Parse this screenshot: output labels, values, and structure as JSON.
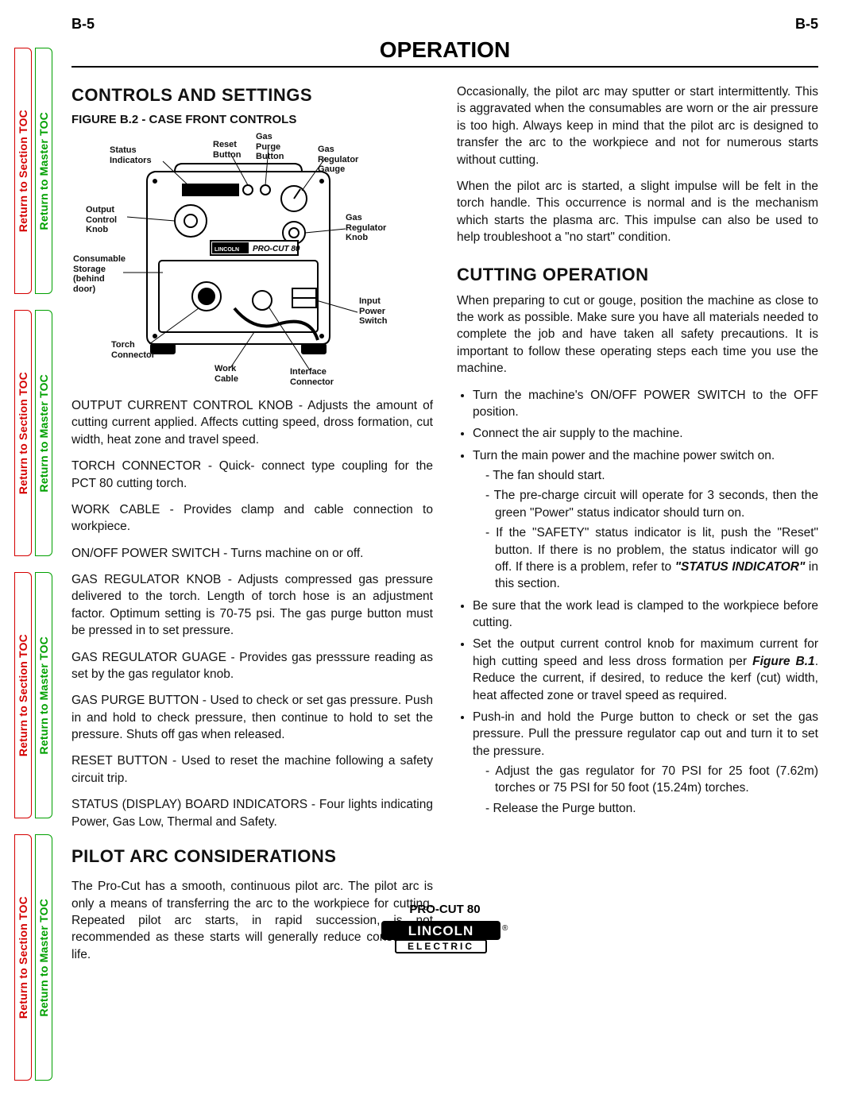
{
  "page_header": {
    "left": "B-5",
    "right": "B-5"
  },
  "title": "OPERATION",
  "side_tabs": {
    "red_label": "Return to Section TOC",
    "green_label": "Return to Master TOC"
  },
  "figure": {
    "caption": "FIGURE B.2 - CASE FRONT CONTROLS",
    "labels": {
      "status_indicators": "Status\nIndicators",
      "reset_button": "Reset\nButton",
      "gas_purge_button": "Gas\nPurge\nButton",
      "gas_regulator_gauge": "Gas\nRegulator\nGauge",
      "output_control_knob": "Output\nControl\nKnob",
      "gas_regulator_knob": "Gas\nRegulator\nKnob",
      "consumable_storage": "Consumable\nStorage\n(behind\ndoor)",
      "torch_connector": "Torch\nConnector",
      "work_cable": "Work\nCable",
      "interface_connector": "Interface\nConnector",
      "input_power_switch": "Input\nPower\nSwitch",
      "product_text": "PRO-CUT 80",
      "brand_text": "LINCOLN"
    },
    "colors": {
      "stroke": "#000000",
      "fill_white": "#ffffff",
      "text": "#000000"
    }
  },
  "left_column": {
    "heading1": "CONTROLS AND SETTINGS",
    "paras": [
      "OUTPUT CURRENT CONTROL KNOB - Adjusts the amount of cutting current applied.  Affects cutting speed, dross formation, cut width, heat zone and travel speed.",
      "TORCH CONNECTOR - Quick- connect type coupling for the PCT 80 cutting torch.",
      "WORK CABLE - Provides clamp and cable connection to workpiece.",
      "ON/OFF POWER SWITCH - Turns machine on or off.",
      "GAS REGULATOR KNOB - Adjusts compressed gas pressure delivered to the torch.  Length of torch hose is an adjustment factor.  Optimum setting is 70-75 psi. The gas purge button must be pressed in to set pressure.",
      "GAS REGULATOR GUAGE - Provides gas presssure reading as set by the gas regulator knob.",
      "GAS PURGE BUTTON - Used to check or set gas pressure.  Push in and hold to check pressure, then continue to hold to set the pressure.  Shuts off gas when released.",
      "RESET BUTTON - Used to reset the machine following a safety circuit trip.",
      "STATUS (DISPLAY) BOARD INDICATORS - Four lights indicating Power, Gas Low, Thermal and Safety."
    ],
    "heading2": "PILOT ARC CONSIDERATIONS",
    "pilot_para": "The Pro-Cut has a smooth, continuous pilot arc.  The pilot arc is only a means of transferring the arc to the workpiece for cutting.  Repeated pilot arc starts, in rapid succession, is not recommended as these starts will generally reduce consumable life."
  },
  "right_column": {
    "para1": "Occasionally, the pilot arc may sputter or start intermittently. This is aggravated when the consumables are worn or the air pressure is too high.  Always keep in mind that the pilot arc is designed to transfer the arc to the workpiece and not for numerous starts without cutting.",
    "para2": "When the pilot arc is started, a slight impulse will be felt in the torch handle. This occurrence is normal and is the mechanism which starts the plasma arc. This impulse can also be used to help troubleshoot a \"no start\" condition.",
    "heading": "CUTTING OPERATION",
    "intro": "When preparing to cut or gouge, position the machine as close to the work as possible.  Make sure you have all materials needed to complete the job and have taken all safety precautions.  It is important to follow these operating steps each time you use the machine.",
    "bullets": [
      {
        "text": "Turn the machine's ON/OFF POWER SWITCH to the OFF position."
      },
      {
        "text": "Connect the air supply to the machine."
      },
      {
        "text": "Turn the main power and the machine power switch on.",
        "sub": [
          "The fan should start.",
          "The pre-charge circuit will operate for 3 seconds, then the green \"Power\" status indicator should turn on.",
          "If the \"SAFETY\" status indicator is lit, push the \"Reset\" button.  If there is no problem, the status indicator will go off.  If there is a problem, refer to <b><i>\"STATUS INDICATOR\"</i></b> in this section."
        ]
      },
      {
        "text": "Be sure that the work lead is clamped to the workpiece before cutting."
      },
      {
        "text": "Set the output current control knob for maximum current for high cutting speed and less dross formation per <b><i>Figure B.1</i></b>. Reduce the current, if desired, to reduce the kerf (cut) width, heat affected zone or travel speed as required."
      },
      {
        "text": "Push-in and hold the Purge button to check or set the gas pressure. Pull the pressure regulator cap out and turn it to set the pressure.",
        "sub": [
          "Adjust the gas regulator for 70 PSI for 25 foot (7.62m) torches or 75 PSI for 50 foot (15.24m) torches.",
          "Release the Purge button."
        ]
      }
    ]
  },
  "footer": {
    "product": "PRO-CUT 80",
    "brand_upper": "LINCOLN",
    "brand_lower": "ELECTRIC"
  }
}
